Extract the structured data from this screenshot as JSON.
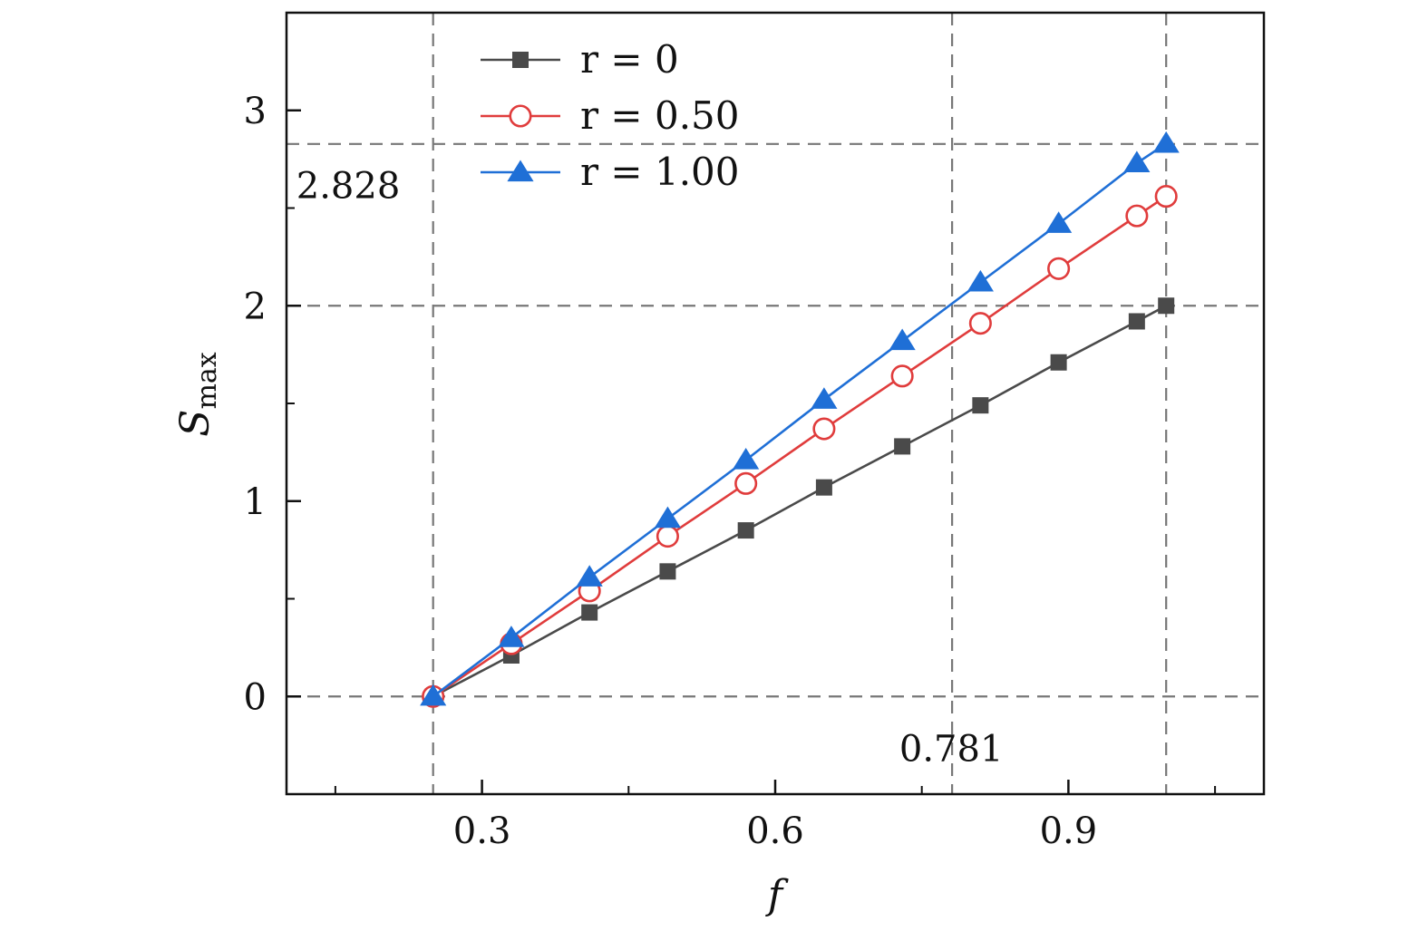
{
  "chart_data": {
    "type": "line",
    "xlabel": "f",
    "ylabel": {
      "main": "S",
      "sub": "max"
    },
    "xlim": [
      0.1,
      1.1
    ],
    "ylim": [
      -0.5,
      3.5
    ],
    "x_ticks": [
      0.3,
      0.6,
      0.9
    ],
    "x_tick_labels": [
      "0.3",
      "0.6",
      "0.9"
    ],
    "y_ticks": [
      0,
      1,
      2,
      3
    ],
    "y_tick_labels": [
      "0",
      "1",
      "2",
      "3"
    ],
    "x_minor_ticks": [
      0.15,
      0.45,
      0.75,
      1.05
    ],
    "y_minor_ticks": [
      0.5,
      1.5,
      2.5
    ],
    "grid": false,
    "legend_position": "top-left",
    "reference_lines": {
      "vertical": [
        0.25,
        0.781,
        1.0
      ],
      "horizontal": [
        0,
        2,
        2.828
      ]
    },
    "annotations": [
      {
        "text": "2.828",
        "x": 0.11,
        "y": 2.55
      },
      {
        "text": "0.781",
        "x": 0.727,
        "y": -0.33
      }
    ],
    "x": [
      0.25,
      0.33,
      0.41,
      0.49,
      0.57,
      0.65,
      0.73,
      0.81,
      0.89,
      0.97,
      1.0
    ],
    "series": [
      {
        "name": "r = 0",
        "color": "#4a4a4a",
        "marker": "square-filled",
        "values": [
          0.0,
          0.21,
          0.43,
          0.64,
          0.85,
          1.07,
          1.28,
          1.49,
          1.71,
          1.92,
          2.0
        ]
      },
      {
        "name": "r = 0.50",
        "color": "#e03c3c",
        "marker": "circle-open",
        "values": [
          0.0,
          0.27,
          0.54,
          0.82,
          1.09,
          1.37,
          1.64,
          1.91,
          2.19,
          2.46,
          2.56
        ]
      },
      {
        "name": "r = 1.00",
        "color": "#1f6fd6",
        "marker": "triangle-filled",
        "values": [
          0.0,
          0.3,
          0.61,
          0.91,
          1.21,
          1.52,
          1.82,
          2.12,
          2.42,
          2.73,
          2.83
        ]
      }
    ]
  }
}
